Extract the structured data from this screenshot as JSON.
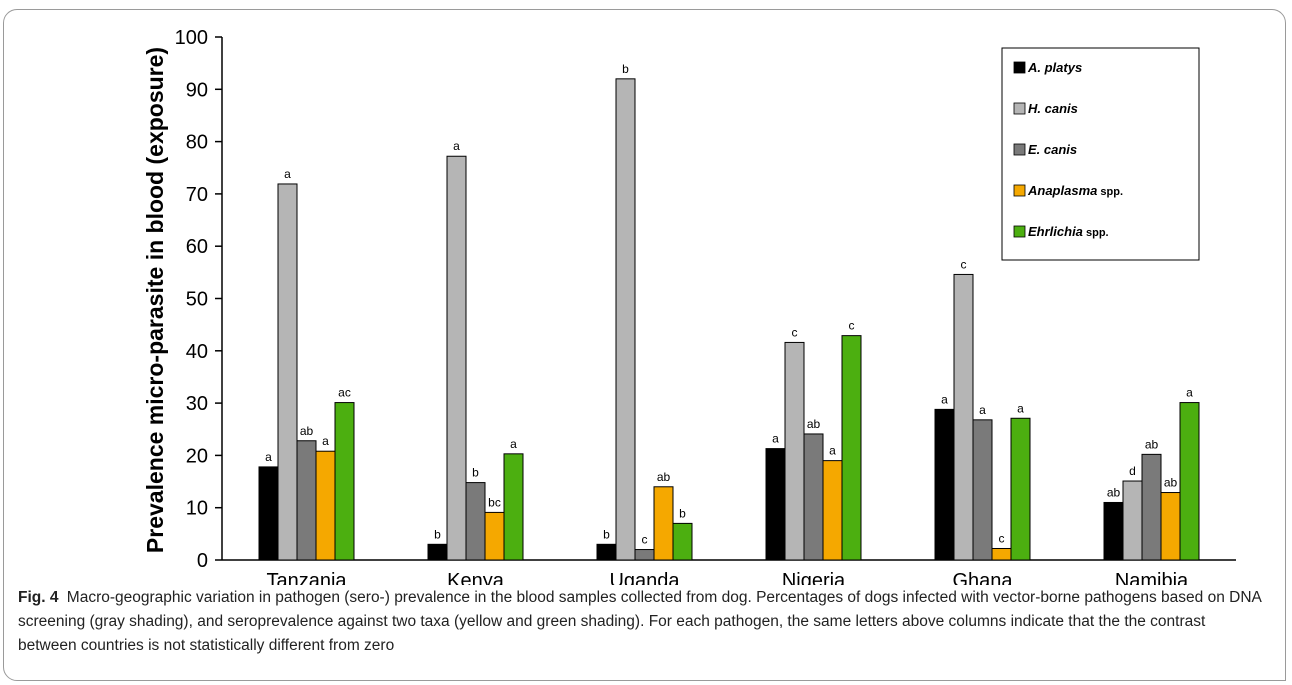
{
  "caption": {
    "label": "Fig. 4",
    "text": "Macro-geographic variation in pathogen (sero-) prevalence in the blood samples collected from dog. Percentages of dogs infected with vector-borne pathogens based on DNA screening (gray shading), and seroprevalence against two taxa (yellow and green shading). For each pathogen, the same letters above columns indicate that the the contrast between countries is not statistically different from zero"
  },
  "chart_data": {
    "type": "bar",
    "ylabel": "Prevalence micro-parasite in blood (exposure)",
    "xlabel": "",
    "ylim": [
      0,
      100
    ],
    "yticks": [
      0,
      10,
      20,
      30,
      40,
      50,
      60,
      70,
      80,
      90,
      100
    ],
    "grid": false,
    "legend_position": "top-right",
    "categories": [
      "Tanzania",
      "Kenya",
      "Uganda",
      "Nigeria",
      "Ghana",
      "Namibia"
    ],
    "series": [
      {
        "name": "A. platys",
        "name_italic": "A. platys",
        "name_suffix": "",
        "color": "#000000",
        "values": [
          17.8,
          3.0,
          3.0,
          21.3,
          28.8,
          11.0
        ],
        "letters": [
          "a",
          "b",
          "b",
          "a",
          "a",
          "ab"
        ]
      },
      {
        "name": "H. canis",
        "name_italic": "H. canis",
        "name_suffix": "",
        "color": "#b5b5b5",
        "values": [
          71.9,
          77.2,
          92.0,
          41.6,
          54.6,
          15.1
        ],
        "letters": [
          "a",
          "a",
          "b",
          "c",
          "c",
          "d"
        ]
      },
      {
        "name": "E. canis",
        "name_italic": "E. canis",
        "name_suffix": "",
        "color": "#7a7a7a",
        "values": [
          22.8,
          14.8,
          2.0,
          24.1,
          26.8,
          20.2
        ],
        "letters": [
          "ab",
          "b",
          "c",
          "ab",
          "a",
          "ab"
        ]
      },
      {
        "name": "Anaplasma spp.",
        "name_italic": "Anaplasma",
        "name_suffix": " spp.",
        "color": "#f5a800",
        "values": [
          20.8,
          9.1,
          14.0,
          19.0,
          2.2,
          12.9
        ],
        "letters": [
          "a",
          "bc",
          "ab",
          "a",
          "c",
          "ab"
        ]
      },
      {
        "name": "Ehrlichia spp.",
        "name_italic": "Ehrlichia",
        "name_suffix": " spp.",
        "color": "#4caf10",
        "values": [
          30.1,
          20.3,
          7.0,
          42.9,
          27.1,
          30.1
        ],
        "letters": [
          "ac",
          "a",
          "b",
          "c",
          "a",
          "a"
        ]
      }
    ]
  }
}
